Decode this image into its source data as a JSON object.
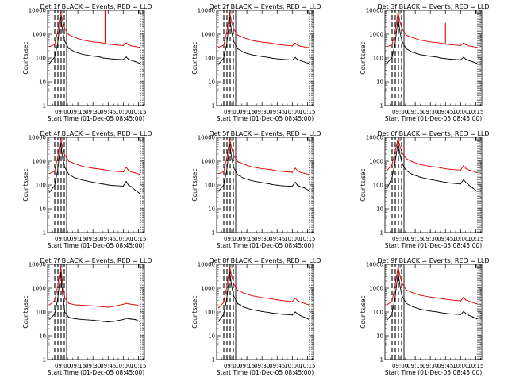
{
  "colors": {
    "events": "#000000",
    "lld": "#e00000",
    "background": "#ffffff"
  },
  "x_tick_labels": [
    "09:00",
    "09:15",
    "09:30",
    "09:45",
    "10:00",
    "10:15"
  ],
  "y_tick_labels": [
    "1",
    "10",
    "100",
    "1000",
    "10000"
  ],
  "chart_data": [
    {
      "type": "line",
      "title": "Det 1f BLACK = Events, RED = LLD",
      "xlabel": "Start Time (01-Dec-05 08:45:00)",
      "ylabel": "Counts/sec",
      "yscale": "log",
      "ylim": [
        1,
        10000
      ],
      "xlim": [
        "08:45",
        "10:21"
      ],
      "x": [
        "08:47",
        "08:52",
        "08:55",
        "08:58",
        "09:00",
        "09:02",
        "09:06",
        "09:12",
        "09:20",
        "09:30",
        "09:37",
        "09:40",
        "09:45",
        "09:50",
        "10:00",
        "10:03",
        "10:05",
        "10:08",
        "10:12",
        "10:16"
      ],
      "series": [
        {
          "name": "LLD",
          "color": "#e00000",
          "values": [
            300,
            360,
            1300,
            8500,
            3200,
            1700,
            950,
            730,
            560,
            470,
            440,
            420,
            380,
            360,
            330,
            430,
            360,
            320,
            300,
            280
          ],
          "spike": {
            "x": "09:42",
            "y": 10000
          }
        },
        {
          "name": "Events",
          "color": "#000000",
          "values": [
            60,
            110,
            400,
            5000,
            1200,
            500,
            250,
            180,
            140,
            120,
            110,
            100,
            95,
            90,
            85,
            110,
            90,
            80,
            70,
            60
          ]
        }
      ]
    },
    {
      "type": "line",
      "title": "Det 2f BLACK = Events, RED = LLD",
      "xlabel": "Start Time (01-Dec-05 08:45:00)",
      "ylabel": "Counts/sec",
      "yscale": "log",
      "ylim": [
        1,
        10000
      ],
      "xlim": [
        "08:45",
        "10:21"
      ],
      "x": [
        "08:47",
        "08:52",
        "08:55",
        "08:58",
        "09:00",
        "09:02",
        "09:06",
        "09:12",
        "09:20",
        "09:30",
        "09:37",
        "09:40",
        "09:45",
        "09:50",
        "10:00",
        "10:03",
        "10:05",
        "10:08",
        "10:12",
        "10:16"
      ],
      "series": [
        {
          "name": "LLD",
          "color": "#e00000",
          "values": [
            280,
            340,
            1200,
            8000,
            3000,
            1600,
            900,
            700,
            540,
            460,
            430,
            410,
            370,
            350,
            320,
            420,
            350,
            310,
            290,
            270
          ]
        },
        {
          "name": "Events",
          "color": "#000000",
          "values": [
            55,
            100,
            380,
            4800,
            1100,
            480,
            240,
            170,
            135,
            115,
            105,
            98,
            92,
            88,
            82,
            105,
            88,
            78,
            68,
            60
          ]
        }
      ]
    },
    {
      "type": "line",
      "title": "Det 3f BLACK = Events, RED = LLD",
      "xlabel": "Start Time (01-Dec-05 08:45:00)",
      "ylabel": "Counts/sec",
      "yscale": "log",
      "ylim": [
        1,
        10000
      ],
      "xlim": [
        "08:45",
        "10:21"
      ],
      "x": [
        "08:47",
        "08:52",
        "08:55",
        "08:58",
        "09:00",
        "09:02",
        "09:06",
        "09:12",
        "09:20",
        "09:30",
        "09:37",
        "09:40",
        "09:45",
        "09:50",
        "10:00",
        "10:03",
        "10:05",
        "10:08",
        "10:12",
        "10:16"
      ],
      "series": [
        {
          "name": "LLD",
          "color": "#e00000",
          "values": [
            300,
            350,
            1300,
            8200,
            3100,
            1650,
            920,
            720,
            560,
            470,
            440,
            420,
            380,
            360,
            330,
            430,
            360,
            320,
            300,
            280
          ],
          "spike": {
            "x": "09:45",
            "y": 3000
          }
        },
        {
          "name": "Events",
          "color": "#000000",
          "values": [
            60,
            105,
            390,
            4900,
            1150,
            490,
            245,
            175,
            138,
            118,
            108,
            100,
            94,
            89,
            84,
            108,
            89,
            79,
            69,
            60
          ]
        }
      ]
    },
    {
      "type": "line",
      "title": "Det 4f BLACK = Events, RED = LLD",
      "xlabel": "Start Time (01-Dec-05 08:45:00)",
      "ylabel": "Counts/sec",
      "yscale": "log",
      "ylim": [
        1,
        10000
      ],
      "xlim": [
        "08:45",
        "10:21"
      ],
      "x": [
        "08:47",
        "08:52",
        "08:55",
        "08:58",
        "09:00",
        "09:02",
        "09:06",
        "09:12",
        "09:20",
        "09:30",
        "09:37",
        "09:40",
        "09:45",
        "09:50",
        "10:00",
        "10:03",
        "10:05",
        "10:08",
        "10:12",
        "10:16"
      ],
      "series": [
        {
          "name": "LLD",
          "color": "#e00000",
          "values": [
            300,
            380,
            1400,
            9000,
            3400,
            1800,
            1000,
            780,
            600,
            500,
            460,
            440,
            400,
            380,
            350,
            560,
            420,
            350,
            320,
            280
          ]
        },
        {
          "name": "Events",
          "color": "#000000",
          "values": [
            50,
            95,
            420,
            5500,
            1300,
            550,
            280,
            200,
            160,
            130,
            115,
            110,
            100,
            95,
            90,
            140,
            100,
            85,
            60,
            45
          ]
        }
      ]
    },
    {
      "type": "line",
      "title": "Det 5f BLACK = Events, RED = LLD",
      "xlabel": "Start Time (01-Dec-05 08:45:00)",
      "ylabel": "Counts/sec",
      "yscale": "log",
      "ylim": [
        1,
        10000
      ],
      "xlim": [
        "08:45",
        "10:21"
      ],
      "x": [
        "08:47",
        "08:52",
        "08:55",
        "08:58",
        "09:00",
        "09:02",
        "09:06",
        "09:12",
        "09:20",
        "09:30",
        "09:37",
        "09:40",
        "09:45",
        "09:50",
        "10:00",
        "10:03",
        "10:05",
        "10:08",
        "10:12",
        "10:16"
      ],
      "series": [
        {
          "name": "LLD",
          "color": "#e00000",
          "values": [
            300,
            360,
            1300,
            8500,
            3200,
            1700,
            950,
            740,
            570,
            480,
            450,
            430,
            390,
            370,
            340,
            500,
            400,
            340,
            310,
            280
          ]
        },
        {
          "name": "Events",
          "color": "#000000",
          "values": [
            55,
            100,
            400,
            5200,
            1200,
            520,
            260,
            190,
            150,
            125,
            112,
            105,
            98,
            92,
            88,
            130,
            98,
            84,
            75,
            60
          ]
        }
      ]
    },
    {
      "type": "line",
      "title": "Det 6f BLACK = Events, RED = LLD",
      "xlabel": "Start Time (01-Dec-05 08:45:00)",
      "ylabel": "Counts/sec",
      "yscale": "log",
      "ylim": [
        1,
        10000
      ],
      "xlim": [
        "08:45",
        "10:21"
      ],
      "x": [
        "08:47",
        "08:52",
        "08:55",
        "08:58",
        "09:00",
        "09:02",
        "09:06",
        "09:12",
        "09:20",
        "09:30",
        "09:37",
        "09:40",
        "09:45",
        "09:50",
        "10:00",
        "10:03",
        "10:05",
        "10:08",
        "10:12",
        "10:16"
      ],
      "series": [
        {
          "name": "LLD",
          "color": "#e00000",
          "values": [
            400,
            700,
            2500,
            8800,
            4000,
            2200,
            1300,
            950,
            720,
            600,
            560,
            520,
            480,
            450,
            420,
            650,
            500,
            420,
            380,
            330
          ]
        },
        {
          "name": "Events",
          "color": "#000000",
          "values": [
            70,
            200,
            900,
            6000,
            1800,
            800,
            400,
            280,
            210,
            170,
            150,
            140,
            130,
            120,
            110,
            170,
            130,
            100,
            75,
            55
          ]
        }
      ]
    },
    {
      "type": "line",
      "title": "Det 7f BLACK = Events, RED = LLD",
      "xlabel": "Start Time (01-Dec-05 08:45:00)",
      "ylabel": "Counts/sec",
      "yscale": "log",
      "ylim": [
        1,
        10000
      ],
      "xlim": [
        "08:45",
        "10:21"
      ],
      "x": [
        "08:47",
        "08:52",
        "08:55",
        "08:58",
        "09:00",
        "09:02",
        "09:06",
        "09:12",
        "09:20",
        "09:30",
        "09:37",
        "09:40",
        "09:45",
        "09:50",
        "10:00",
        "10:03",
        "10:05",
        "10:08",
        "10:12",
        "10:16"
      ],
      "series": [
        {
          "name": "LLD",
          "color": "#e00000",
          "values": [
            200,
            300,
            1200,
            8000,
            1500,
            400,
            230,
            200,
            190,
            180,
            170,
            165,
            160,
            170,
            210,
            230,
            220,
            210,
            200,
            180
          ]
        },
        {
          "name": "Events",
          "color": "#000000",
          "values": [
            50,
            80,
            350,
            4500,
            500,
            100,
            60,
            52,
            48,
            45,
            42,
            40,
            38,
            40,
            48,
            55,
            52,
            50,
            48,
            40
          ]
        }
      ]
    },
    {
      "type": "line",
      "title": "Det 8f BLACK = Events, RED = LLD",
      "xlabel": "Start Time (01-Dec-05 08:45:00)",
      "ylabel": "Counts/sec",
      "yscale": "log",
      "ylim": [
        1,
        10000
      ],
      "xlim": [
        "08:45",
        "10:21"
      ],
      "x": [
        "08:47",
        "08:52",
        "08:55",
        "08:58",
        "09:00",
        "09:02",
        "09:06",
        "09:12",
        "09:20",
        "09:30",
        "09:37",
        "09:40",
        "09:45",
        "09:50",
        "10:00",
        "10:03",
        "10:05",
        "10:08",
        "10:12",
        "10:16"
      ],
      "series": [
        {
          "name": "LLD",
          "color": "#e00000",
          "values": [
            150,
            250,
            1100,
            7500,
            3000,
            1500,
            800,
            620,
            480,
            400,
            370,
            350,
            320,
            300,
            270,
            380,
            300,
            260,
            230,
            200
          ]
        },
        {
          "name": "Events",
          "color": "#000000",
          "values": [
            40,
            80,
            350,
            4500,
            1100,
            450,
            220,
            160,
            125,
            105,
            95,
            90,
            85,
            80,
            75,
            100,
            85,
            70,
            60,
            50
          ]
        }
      ]
    },
    {
      "type": "line",
      "title": "Det 9f BLACK = Events, RED = LLD",
      "xlabel": "Start Time (01-Dec-05 08:45:00)",
      "ylabel": "Counts/sec",
      "yscale": "log",
      "ylim": [
        1,
        10000
      ],
      "xlim": [
        "08:45",
        "10:21"
      ],
      "x": [
        "08:47",
        "08:52",
        "08:55",
        "08:58",
        "09:00",
        "09:02",
        "09:06",
        "09:12",
        "09:20",
        "09:30",
        "09:37",
        "09:40",
        "09:45",
        "09:50",
        "10:00",
        "10:03",
        "10:05",
        "10:08",
        "10:12",
        "10:16"
      ],
      "series": [
        {
          "name": "LLD",
          "color": "#e00000",
          "values": [
            200,
            280,
            1200,
            7800,
            3100,
            1600,
            850,
            650,
            500,
            420,
            390,
            370,
            340,
            320,
            290,
            420,
            320,
            280,
            250,
            220
          ]
        },
        {
          "name": "Events",
          "color": "#000000",
          "values": [
            45,
            85,
            380,
            4700,
            1150,
            470,
            230,
            170,
            130,
            110,
            100,
            94,
            88,
            83,
            78,
            105,
            88,
            73,
            62,
            52
          ]
        }
      ]
    }
  ]
}
